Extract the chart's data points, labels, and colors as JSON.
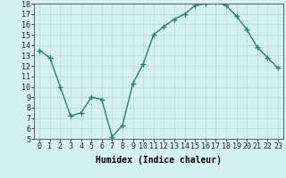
{
  "x": [
    0,
    1,
    2,
    3,
    4,
    5,
    6,
    7,
    8,
    9,
    10,
    11,
    12,
    13,
    14,
    15,
    16,
    17,
    18,
    19,
    20,
    21,
    22,
    23
  ],
  "y": [
    13.5,
    12.8,
    10.0,
    7.2,
    7.5,
    9.0,
    8.8,
    5.2,
    6.3,
    10.3,
    12.2,
    15.0,
    15.8,
    16.5,
    17.0,
    17.8,
    18.0,
    18.2,
    17.8,
    16.8,
    15.5,
    13.8,
    12.8,
    11.8
  ],
  "line_color": "#2e7d6e",
  "marker": "+",
  "bg_color": "#d4f0f0",
  "grid_color": "#b8dada",
  "xlabel": "Humidex (Indice chaleur)",
  "ylim": [
    5,
    18
  ],
  "xlim": [
    -0.5,
    23.5
  ],
  "yticks": [
    5,
    6,
    7,
    8,
    9,
    10,
    11,
    12,
    13,
    14,
    15,
    16,
    17,
    18
  ],
  "xticks": [
    0,
    1,
    2,
    3,
    4,
    5,
    6,
    7,
    8,
    9,
    10,
    11,
    12,
    13,
    14,
    15,
    16,
    17,
    18,
    19,
    20,
    21,
    22,
    23
  ],
  "line_width": 1.0,
  "marker_size": 4,
  "tick_fontsize": 6,
  "xlabel_fontsize": 7
}
